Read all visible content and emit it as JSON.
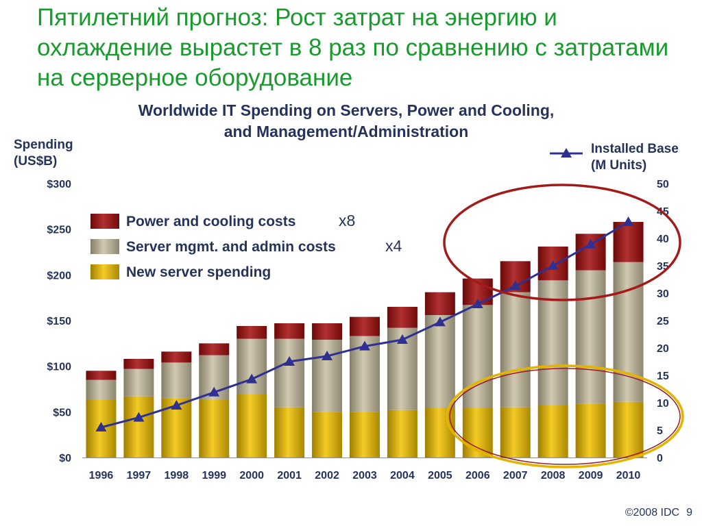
{
  "slide": {
    "title": "Пятилетний прогноз:  Рост затрат на энергию и охлаждение вырастет в 8 раз по сравнению с затратами на серверное оборудование",
    "footer": "©2008 IDC",
    "page_number": "9"
  },
  "chart_data": {
    "type": "bar",
    "stacked": true,
    "title": "Worldwide IT Spending on Servers, Power and Cooling, and Management/Administration",
    "ylabel_left": "Spending\n(US$B)",
    "ylabel_right": "Installed Base\n(M Units)",
    "categories": [
      "1996",
      "1997",
      "1998",
      "1999",
      "2000",
      "2001",
      "2002",
      "2003",
      "2004",
      "2005",
      "2006",
      "2007",
      "2008",
      "2009",
      "2010"
    ],
    "left_ticks": [
      "$0",
      "$50",
      "$100",
      "$150",
      "$200",
      "$250",
      "$300"
    ],
    "right_ticks": [
      "0",
      "5",
      "10",
      "15",
      "20",
      "25",
      "30",
      "35",
      "40",
      "45",
      "50"
    ],
    "ylim_left": [
      0,
      300
    ],
    "ylim_right": [
      0,
      50
    ],
    "series": [
      {
        "name": "New server spending",
        "color": "#f2c200",
        "axis": "left",
        "values": [
          63,
          67,
          65,
          63,
          69,
          55,
          50,
          50,
          52,
          54,
          54,
          55,
          57,
          59,
          61
        ]
      },
      {
        "name": "Server mgmt. and admin costs",
        "color": "#c9c0a2",
        "axis": "left",
        "values": [
          22,
          30,
          39,
          49,
          61,
          75,
          79,
          83,
          90,
          102,
          113,
          126,
          137,
          146,
          153
        ]
      },
      {
        "name": "Power and cooling costs",
        "color": "#a30d0d",
        "axis": "left",
        "values": [
          10,
          11,
          12,
          13,
          14,
          17,
          18,
          21,
          23,
          25,
          29,
          34,
          37,
          40,
          44
        ]
      },
      {
        "name": "Installed Base",
        "type": "line",
        "color": "#2e3192",
        "axis": "right",
        "values": [
          5.5,
          7.3,
          9.5,
          11.9,
          14.3,
          17.5,
          18.5,
          20.3,
          21.5,
          24.7,
          28,
          31.3,
          35,
          38.9,
          43
        ]
      }
    ],
    "legend": {
      "placement": "top-left",
      "items": [
        {
          "label": "Power and cooling costs",
          "note": "x8",
          "color": "#a30d0d"
        },
        {
          "label": "Server mgmt. and admin costs",
          "note": "x4",
          "color": "#c9c0a2"
        },
        {
          "label": "New server spending",
          "note": "",
          "color": "#f2c200"
        }
      ]
    },
    "highlight_colors": {
      "upper": "#a31a1a",
      "lower": "#e2b400"
    },
    "grid": false
  }
}
